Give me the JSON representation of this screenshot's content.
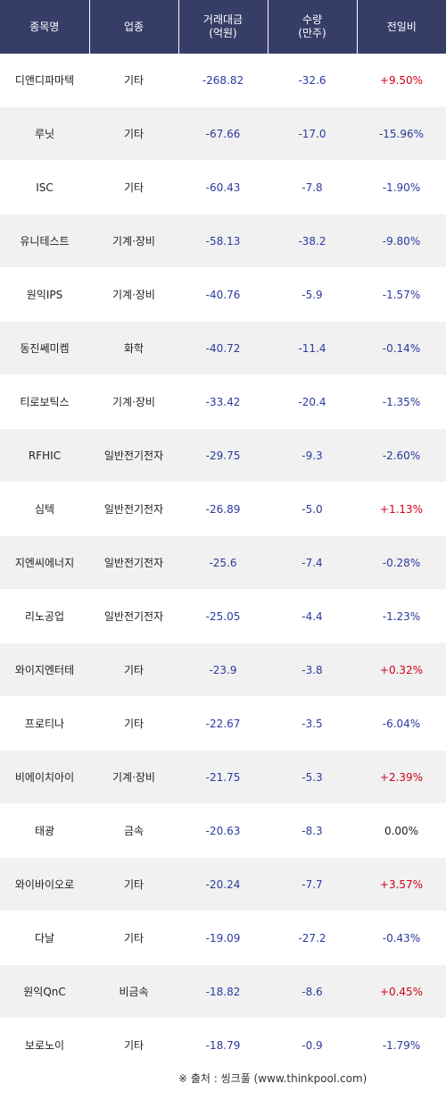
{
  "headers": {
    "name": "종목명",
    "sector": "업종",
    "amount_line1": "거래대금",
    "amount_line2": "(억원)",
    "volume_line1": "수량",
    "volume_line2": "(만주)",
    "change": "전일비"
  },
  "rows": [
    {
      "name": "디앤디파마텍",
      "sector": "기타",
      "amount": "-268.82",
      "volume": "-32.6",
      "change": "+9.50%",
      "dir": "up"
    },
    {
      "name": "루닛",
      "sector": "기타",
      "amount": "-67.66",
      "volume": "-17.0",
      "change": "-15.96%",
      "dir": "down"
    },
    {
      "name": "ISC",
      "sector": "기타",
      "amount": "-60.43",
      "volume": "-7.8",
      "change": "-1.90%",
      "dir": "down"
    },
    {
      "name": "유니테스트",
      "sector": "기계·장비",
      "amount": "-58.13",
      "volume": "-38.2",
      "change": "-9.80%",
      "dir": "down"
    },
    {
      "name": "원익IPS",
      "sector": "기계·장비",
      "amount": "-40.76",
      "volume": "-5.9",
      "change": "-1.57%",
      "dir": "down"
    },
    {
      "name": "동진쎄미켐",
      "sector": "화학",
      "amount": "-40.72",
      "volume": "-11.4",
      "change": "-0.14%",
      "dir": "down"
    },
    {
      "name": "티로보틱스",
      "sector": "기계·장비",
      "amount": "-33.42",
      "volume": "-20.4",
      "change": "-1.35%",
      "dir": "down"
    },
    {
      "name": "RFHIC",
      "sector": "일반전기전자",
      "amount": "-29.75",
      "volume": "-9.3",
      "change": "-2.60%",
      "dir": "down"
    },
    {
      "name": "심텍",
      "sector": "일반전기전자",
      "amount": "-26.89",
      "volume": "-5.0",
      "change": "+1.13%",
      "dir": "up"
    },
    {
      "name": "지엔씨에너지",
      "sector": "일반전기전자",
      "amount": "-25.6",
      "volume": "-7.4",
      "change": "-0.28%",
      "dir": "down"
    },
    {
      "name": "리노공업",
      "sector": "일반전기전자",
      "amount": "-25.05",
      "volume": "-4.4",
      "change": "-1.23%",
      "dir": "down"
    },
    {
      "name": "와이지엔터테",
      "sector": "기타",
      "amount": "-23.9",
      "volume": "-3.8",
      "change": "+0.32%",
      "dir": "up"
    },
    {
      "name": "프로티나",
      "sector": "기타",
      "amount": "-22.67",
      "volume": "-3.5",
      "change": "-6.04%",
      "dir": "down"
    },
    {
      "name": "비에이치아이",
      "sector": "기계·장비",
      "amount": "-21.75",
      "volume": "-5.3",
      "change": "+2.39%",
      "dir": "up"
    },
    {
      "name": "태광",
      "sector": "금속",
      "amount": "-20.63",
      "volume": "-8.3",
      "change": "0.00%",
      "dir": "flat"
    },
    {
      "name": "와이바이오로",
      "sector": "기타",
      "amount": "-20.24",
      "volume": "-7.7",
      "change": "+3.57%",
      "dir": "up"
    },
    {
      "name": "다날",
      "sector": "기타",
      "amount": "-19.09",
      "volume": "-27.2",
      "change": "-0.43%",
      "dir": "down"
    },
    {
      "name": "원익QnC",
      "sector": "비금속",
      "amount": "-18.82",
      "volume": "-8.6",
      "change": "+0.45%",
      "dir": "up"
    },
    {
      "name": "보로노이",
      "sector": "기타",
      "amount": "-18.79",
      "volume": "-0.9",
      "change": "-1.79%",
      "dir": "down"
    }
  ],
  "source": "※ 출처 : 씽크풀 (www.thinkpool.com)",
  "colors": {
    "header_bg": "#363d67",
    "up": "#d0021b",
    "down": "#2b3a9e",
    "even_row_bg": "#f1f1f1"
  }
}
